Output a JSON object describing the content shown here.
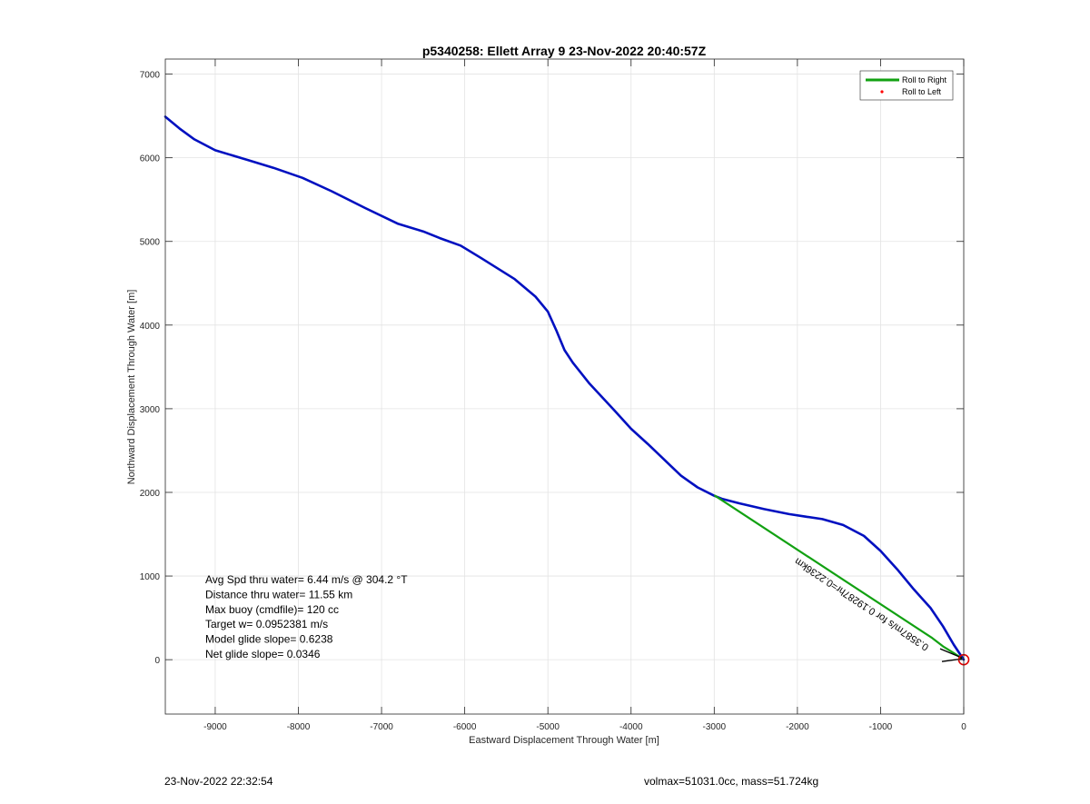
{
  "chart_data": {
    "type": "line",
    "title": "p5340258: Ellett Array 9 23-Nov-2022 20:40:57Z",
    "xlabel": "Eastward Displacement Through Water [m]",
    "ylabel": "Northward Displacement Through Water [m]",
    "xlim": [
      -9600,
      0
    ],
    "ylim": [
      -650,
      7180
    ],
    "xticks": [
      -9000,
      -8000,
      -7000,
      -6000,
      -5000,
      -4000,
      -3000,
      -2000,
      -1000,
      0
    ],
    "yticks": [
      0,
      1000,
      2000,
      3000,
      4000,
      5000,
      6000,
      7000
    ],
    "grid": true,
    "legend_position": "top-right",
    "legend": [
      {
        "label": "Roll to Right",
        "color": "#12a112",
        "marker": "line"
      },
      {
        "label": "Roll to Left",
        "color": "#ff0000",
        "marker": "dot"
      }
    ],
    "series": [
      {
        "color": "#0010c0",
        "x": [
          -9600,
          -9430,
          -9250,
          -9000,
          -8600,
          -8300,
          -7950,
          -7600,
          -7200,
          -6800,
          -6500,
          -6300,
          -6050,
          -5800,
          -5400,
          -5150,
          -5000,
          -4900,
          -4800,
          -4700,
          -4500,
          -4200,
          -4000,
          -3800,
          -3600,
          -3400,
          -3200,
          -3000,
          -2900,
          -2700,
          -2400,
          -2100,
          -1900,
          -1700,
          -1450,
          -1200,
          -1000,
          -800,
          -600,
          -400,
          -250,
          -120,
          -40,
          0
        ],
        "y": [
          6490,
          6350,
          6220,
          6090,
          5970,
          5880,
          5760,
          5600,
          5400,
          5210,
          5120,
          5040,
          4950,
          4800,
          4550,
          4340,
          4160,
          3940,
          3700,
          3550,
          3300,
          2980,
          2760,
          2580,
          2390,
          2200,
          2060,
          1960,
          1920,
          1870,
          1800,
          1740,
          1710,
          1680,
          1610,
          1480,
          1300,
          1080,
          840,
          620,
          400,
          180,
          60,
          0
        ]
      },
      {
        "color": "#12a112",
        "x": [
          -2990,
          -380,
          -250,
          -120,
          -30
        ],
        "y": [
          1960,
          260,
          160,
          80,
          20
        ]
      }
    ],
    "annotations": [
      "Avg Spd thru water=  6.44 m/s @ 304.2 °T",
      "Distance thru water= 11.55 km",
      "Max buoy (cmdfile)= 120 cc",
      "Target w= 0.0952381 m/s",
      "Model glide slope= 0.6238",
      "Net glide slope= 0.0346"
    ],
    "end_marker": {
      "x": 0,
      "y": 0,
      "color": "#e00000"
    },
    "vector_label": "0.3587m/s for 0.19287hr=0.2236km"
  },
  "footer": {
    "timestamp": "23-Nov-2022 22:32:54",
    "mass_info": "volmax=51031.0cc, mass=51.724kg"
  }
}
